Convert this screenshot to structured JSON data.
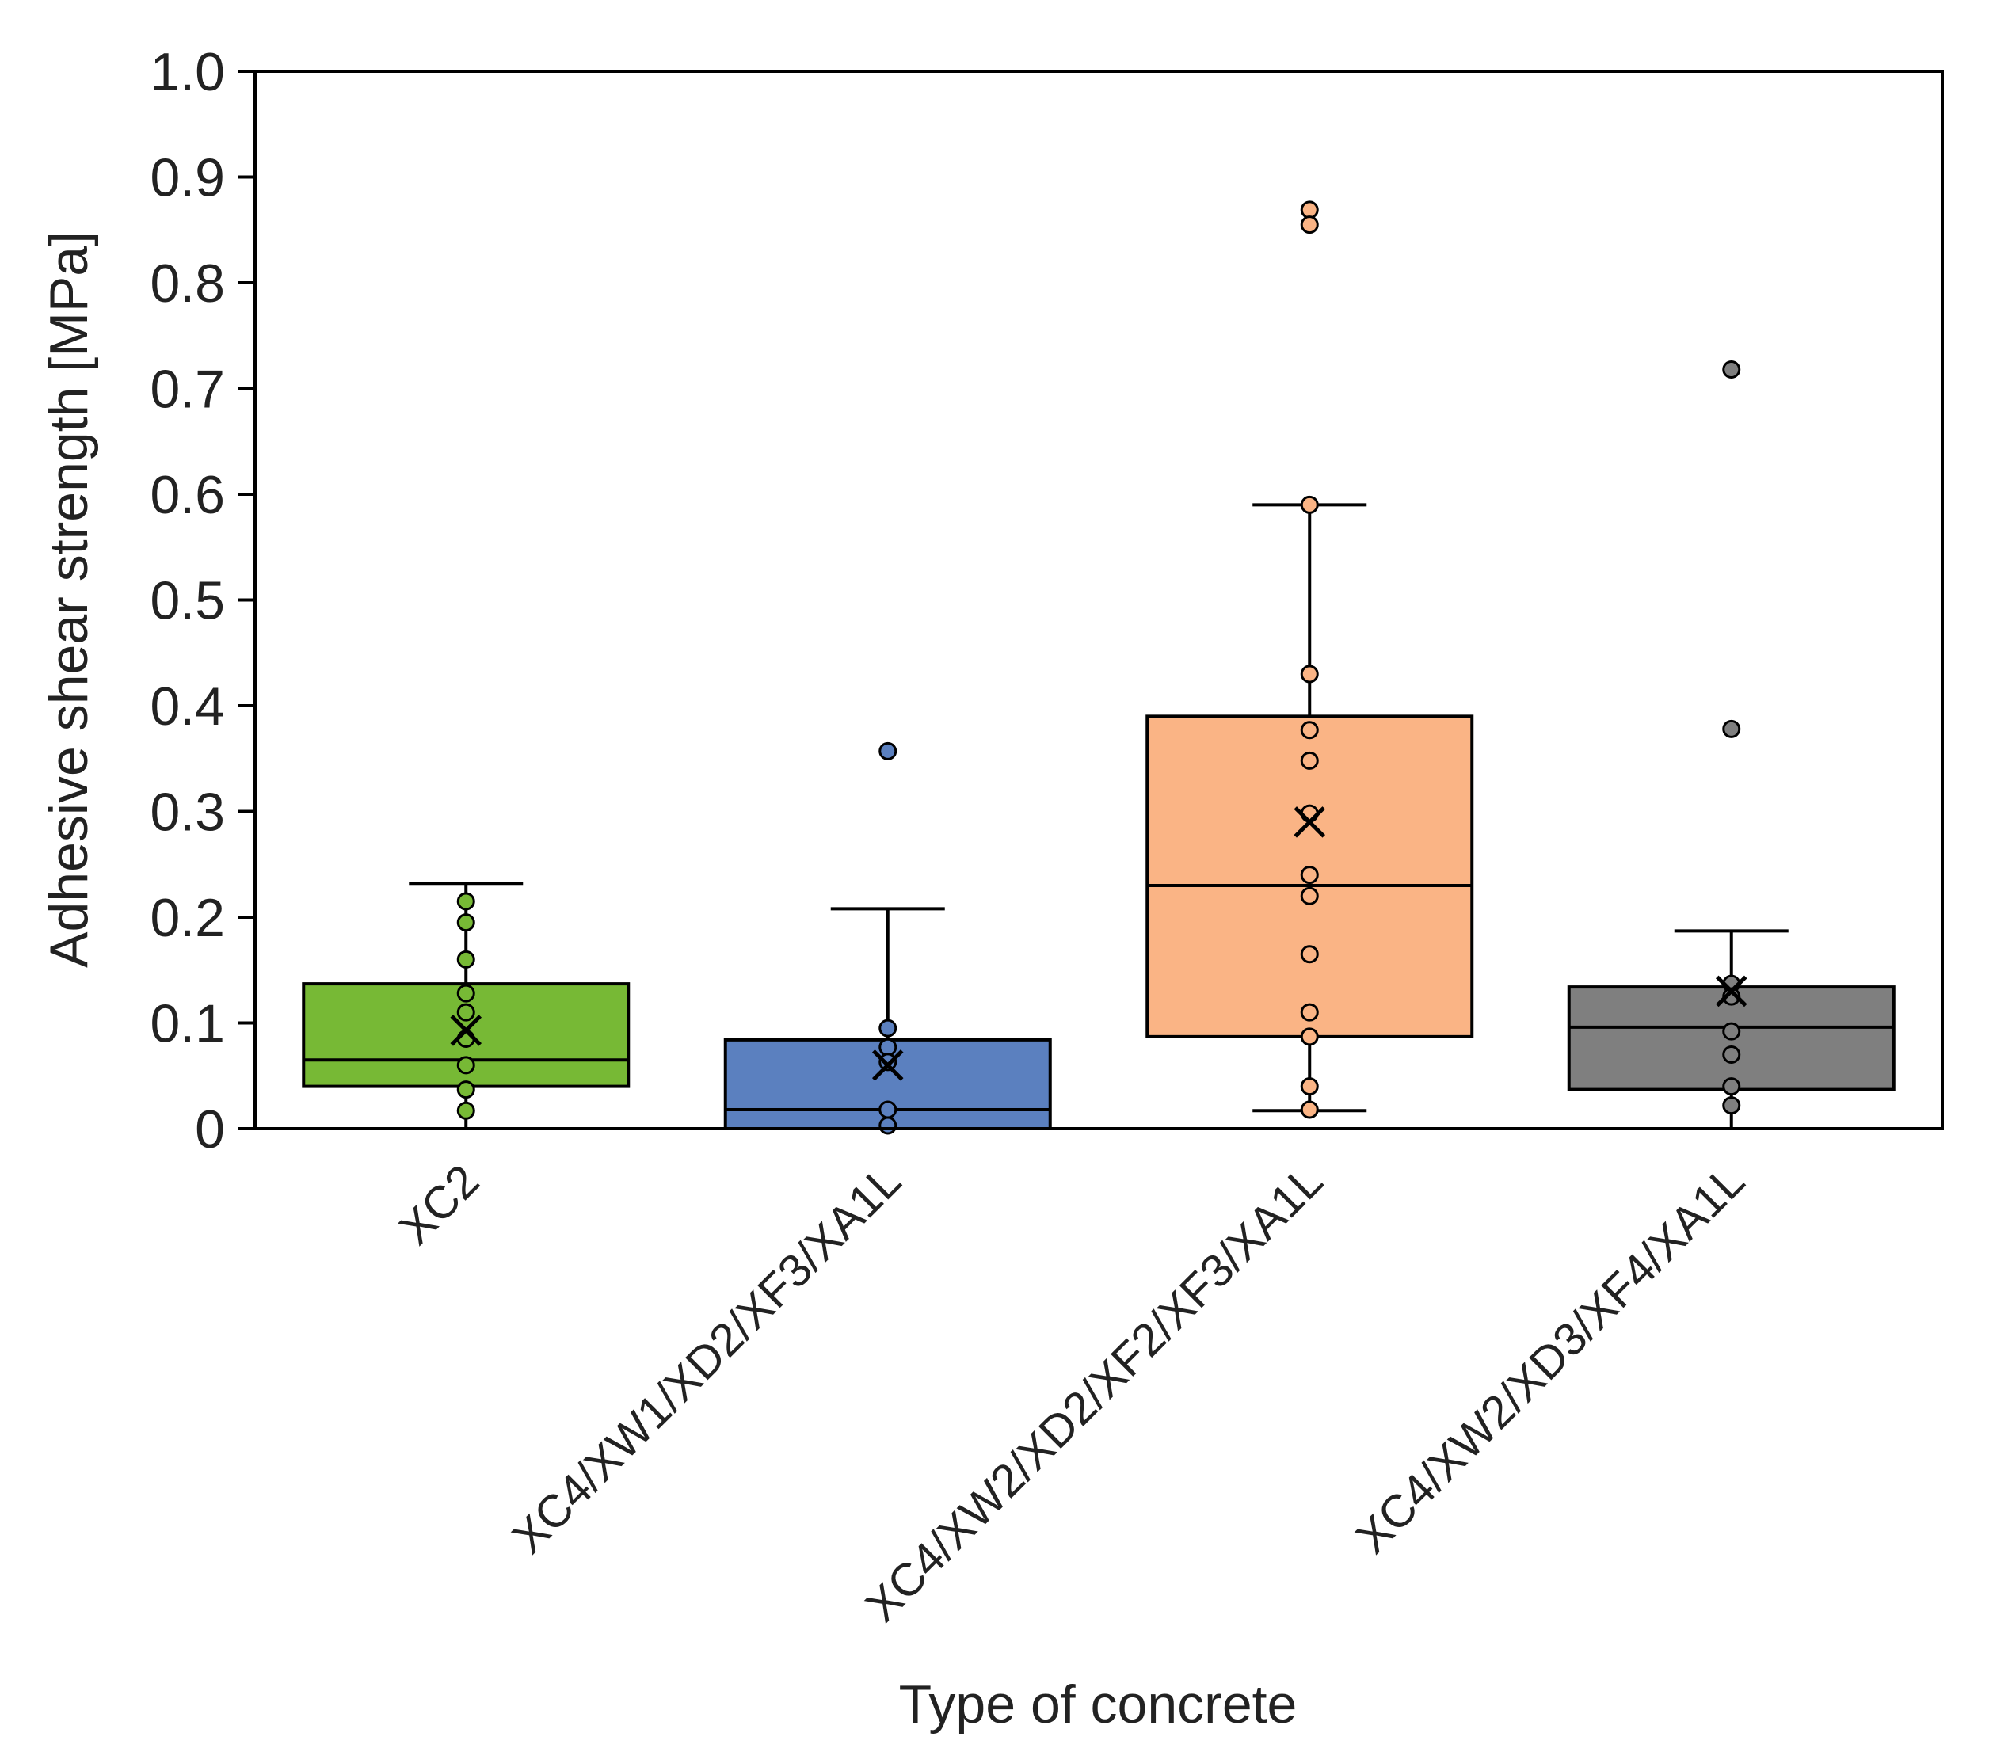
{
  "chart_data": {
    "type": "box",
    "xlabel": "Type of concrete",
    "ylabel": "Adhesive shear strength [MPa]",
    "ylim": [
      0,
      1.0
    ],
    "yticks": [
      {
        "value": 0,
        "label": "0"
      },
      {
        "value": 0.1,
        "label": "0.1"
      },
      {
        "value": 0.2,
        "label": "0.2"
      },
      {
        "value": 0.3,
        "label": "0.3"
      },
      {
        "value": 0.4,
        "label": "0.4"
      },
      {
        "value": 0.5,
        "label": "0.5"
      },
      {
        "value": 0.6,
        "label": "0.6"
      },
      {
        "value": 0.7,
        "label": "0.7"
      },
      {
        "value": 0.8,
        "label": "0.8"
      },
      {
        "value": 0.9,
        "label": "0.9"
      },
      {
        "value": 1.0,
        "label": "1.0"
      }
    ],
    "grid": false,
    "legend": "none",
    "categories": [
      "XC2",
      "XC4/XW1/XD2/XF3/XA1L",
      "XC4/XW2/XD2/XF2/XF3/XA1L",
      "XC4/XW2/XD3/XF4/XA1L"
    ],
    "boxes": [
      {
        "category": "XC2",
        "color": "#77b935",
        "whisker_low": 0.0,
        "q1": 0.04,
        "median": 0.065,
        "q3": 0.137,
        "whisker_high": 0.232,
        "mean": 0.093,
        "points": [
          0.215,
          0.195,
          0.16,
          0.128,
          0.11,
          0.085,
          0.06,
          0.037,
          0.017
        ],
        "outliers": []
      },
      {
        "category": "XC4/XW1/XD2/XF3/XA1L",
        "color": "#5b80bf",
        "whisker_low": 0.0,
        "q1": 0.0,
        "median": 0.018,
        "q3": 0.084,
        "whisker_high": 0.208,
        "mean": 0.06,
        "points": [
          0.095,
          0.077,
          0.063,
          0.018,
          0.003
        ],
        "outliers": [
          0.357
        ]
      },
      {
        "category": "XC4/XW2/XD2/XF2/XF3/XA1L",
        "color": "#fab485",
        "whisker_low": 0.017,
        "q1": 0.087,
        "median": 0.23,
        "q3": 0.39,
        "whisker_high": 0.59,
        "mean": 0.29,
        "points": [
          0.59,
          0.43,
          0.377,
          0.348,
          0.298,
          0.24,
          0.22,
          0.165,
          0.11,
          0.087,
          0.04,
          0.018
        ],
        "outliers": [
          0.869,
          0.855
        ]
      },
      {
        "category": "XC4/XW2/XD3/XF4/XA1L",
        "color": "#7f7f7f",
        "whisker_low": 0.0,
        "q1": 0.037,
        "median": 0.096,
        "q3": 0.134,
        "whisker_high": 0.187,
        "mean": 0.13,
        "points": [
          0.137,
          0.125,
          0.092,
          0.07,
          0.04,
          0.022
        ],
        "outliers": [
          0.718,
          0.378
        ]
      }
    ]
  }
}
